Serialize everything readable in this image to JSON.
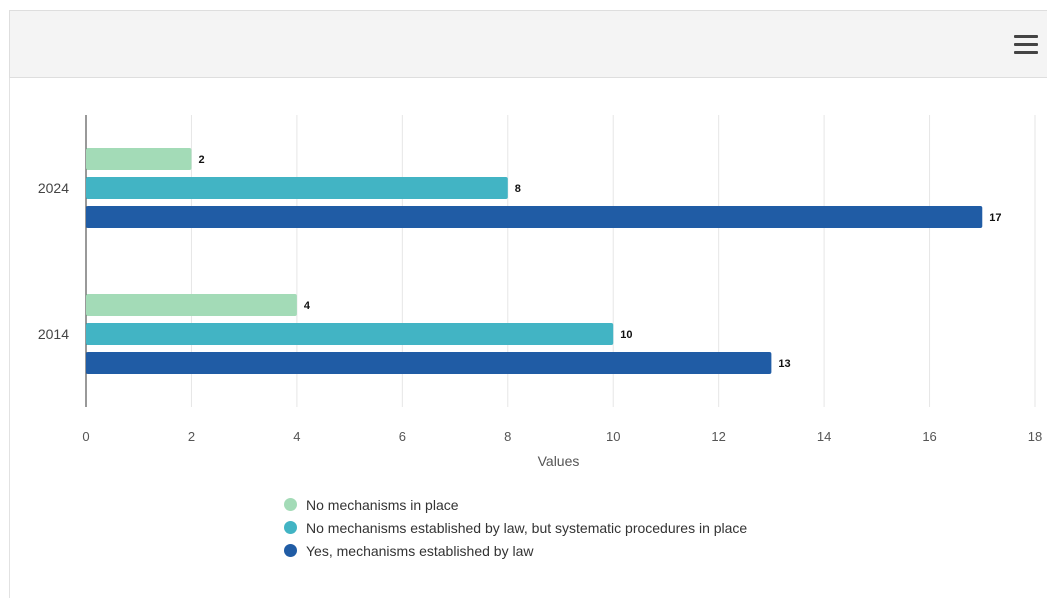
{
  "menu_icon": "hamburger-menu-icon",
  "chart_data": {
    "type": "bar",
    "orientation": "horizontal",
    "categories": [
      "2024",
      "2014"
    ],
    "series": [
      {
        "name": "No mechanisms in place",
        "color": "#a3dbb7",
        "values": [
          2,
          4
        ]
      },
      {
        "name": "No mechanisms established by law, but systematic procedures in place",
        "color": "#42b4c4",
        "values": [
          8,
          10
        ]
      },
      {
        "name": "Yes, mechanisms established by law",
        "color": "#205ca5",
        "values": [
          17,
          13
        ]
      }
    ],
    "xlabel": "Values",
    "ylabel": "",
    "xlim": [
      0,
      18
    ],
    "xticks": [
      0,
      2,
      4,
      6,
      8,
      10,
      12,
      14,
      16,
      18
    ],
    "grid": true,
    "legend_position": "bottom",
    "data_labels": true
  }
}
